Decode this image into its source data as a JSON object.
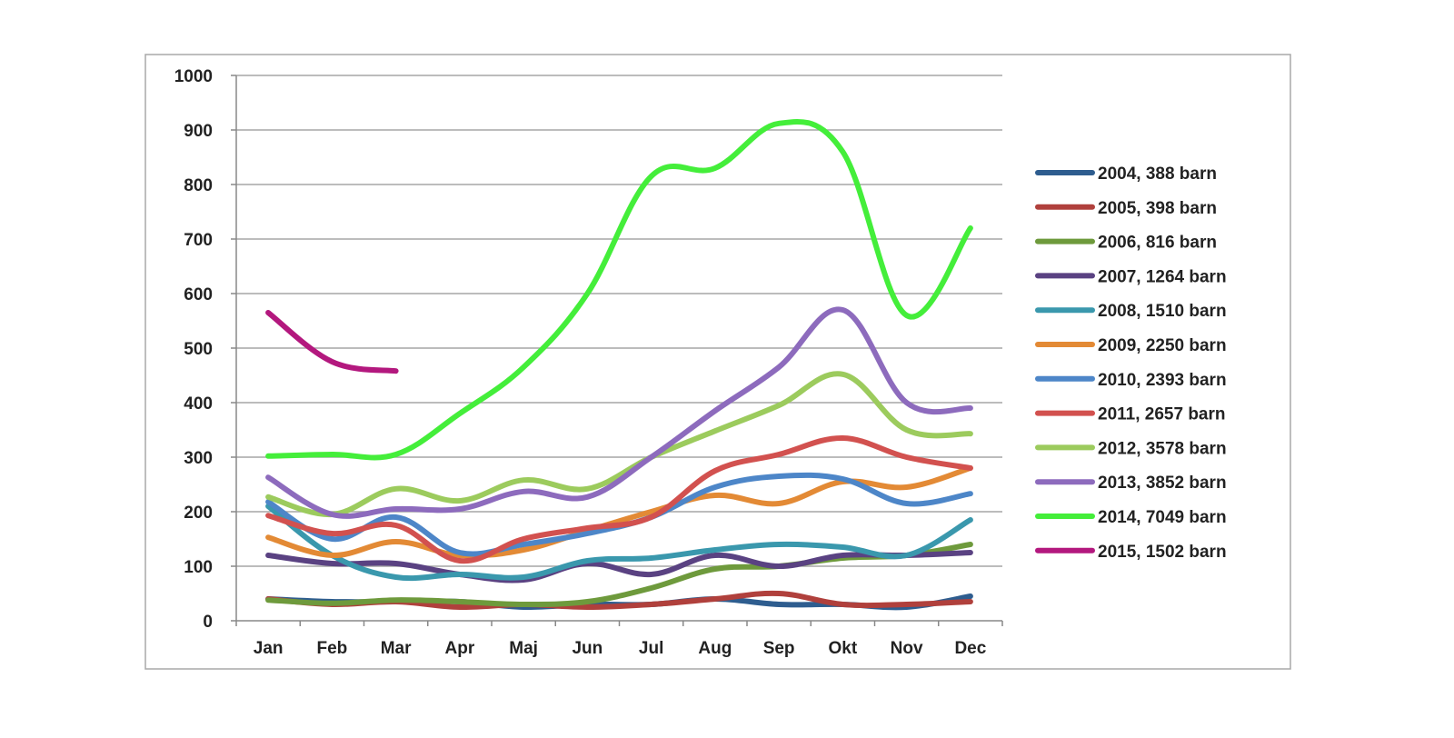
{
  "chart_data": {
    "type": "line",
    "title": "",
    "xlabel": "",
    "ylabel": "",
    "categories": [
      "Jan",
      "Feb",
      "Mar",
      "Apr",
      "Maj",
      "Jun",
      "Jul",
      "Aug",
      "Sep",
      "Okt",
      "Nov",
      "Dec"
    ],
    "y_ticks": [
      "0",
      "100",
      "200",
      "300",
      "400",
      "500",
      "600",
      "700",
      "800",
      "900",
      "1000"
    ],
    "ylim": [
      0,
      1000
    ],
    "grid": true,
    "legend_position": "right",
    "series": [
      {
        "name": "2004, 388 barn",
        "color": "#2e5d8f",
        "values": [
          40,
          35,
          35,
          35,
          25,
          30,
          30,
          40,
          30,
          30,
          25,
          45
        ]
      },
      {
        "name": "2005, 398 barn",
        "color": "#b0403c",
        "values": [
          40,
          30,
          35,
          25,
          30,
          25,
          30,
          40,
          50,
          30,
          30,
          35
        ]
      },
      {
        "name": "2006, 816 barn",
        "color": "#6e9a3c",
        "values": [
          38,
          32,
          38,
          35,
          30,
          35,
          60,
          95,
          100,
          115,
          120,
          140
        ]
      },
      {
        "name": "2007, 1264 barn",
        "color": "#5a4282",
        "values": [
          120,
          105,
          105,
          85,
          75,
          105,
          85,
          120,
          100,
          120,
          120,
          125
        ]
      },
      {
        "name": "2008, 1510 barn",
        "color": "#3a98ad",
        "values": [
          210,
          120,
          80,
          85,
          80,
          110,
          115,
          130,
          140,
          135,
          120,
          185
        ]
      },
      {
        "name": "2009, 2250 barn",
        "color": "#e38a35",
        "values": [
          153,
          120,
          145,
          120,
          130,
          165,
          200,
          230,
          215,
          255,
          245,
          280
        ]
      },
      {
        "name": "2010, 2393 barn",
        "color": "#4d86c8",
        "values": [
          218,
          150,
          190,
          125,
          140,
          160,
          190,
          245,
          265,
          260,
          215,
          233
        ]
      },
      {
        "name": "2011, 2657 barn",
        "color": "#d2514f",
        "values": [
          193,
          160,
          175,
          110,
          150,
          170,
          190,
          275,
          305,
          335,
          300,
          280
        ]
      },
      {
        "name": "2012, 3578 barn",
        "color": "#9ccb5d",
        "values": [
          227,
          195,
          242,
          220,
          258,
          242,
          300,
          348,
          395,
          452,
          350,
          343
        ]
      },
      {
        "name": "2013, 3852 barn",
        "color": "#8d6bbd",
        "values": [
          263,
          195,
          205,
          205,
          237,
          227,
          300,
          385,
          465,
          570,
          400,
          390
        ]
      },
      {
        "name": "2014, 7049 barn",
        "color": "#44ee3a",
        "values": [
          302,
          305,
          305,
          380,
          465,
          600,
          815,
          830,
          912,
          860,
          560,
          720
        ]
      },
      {
        "name": "2015, 1502 barn",
        "color": "#b3187e",
        "values": [
          565,
          475,
          458,
          null,
          null,
          null,
          null,
          null,
          null,
          null,
          null,
          null
        ]
      }
    ]
  }
}
